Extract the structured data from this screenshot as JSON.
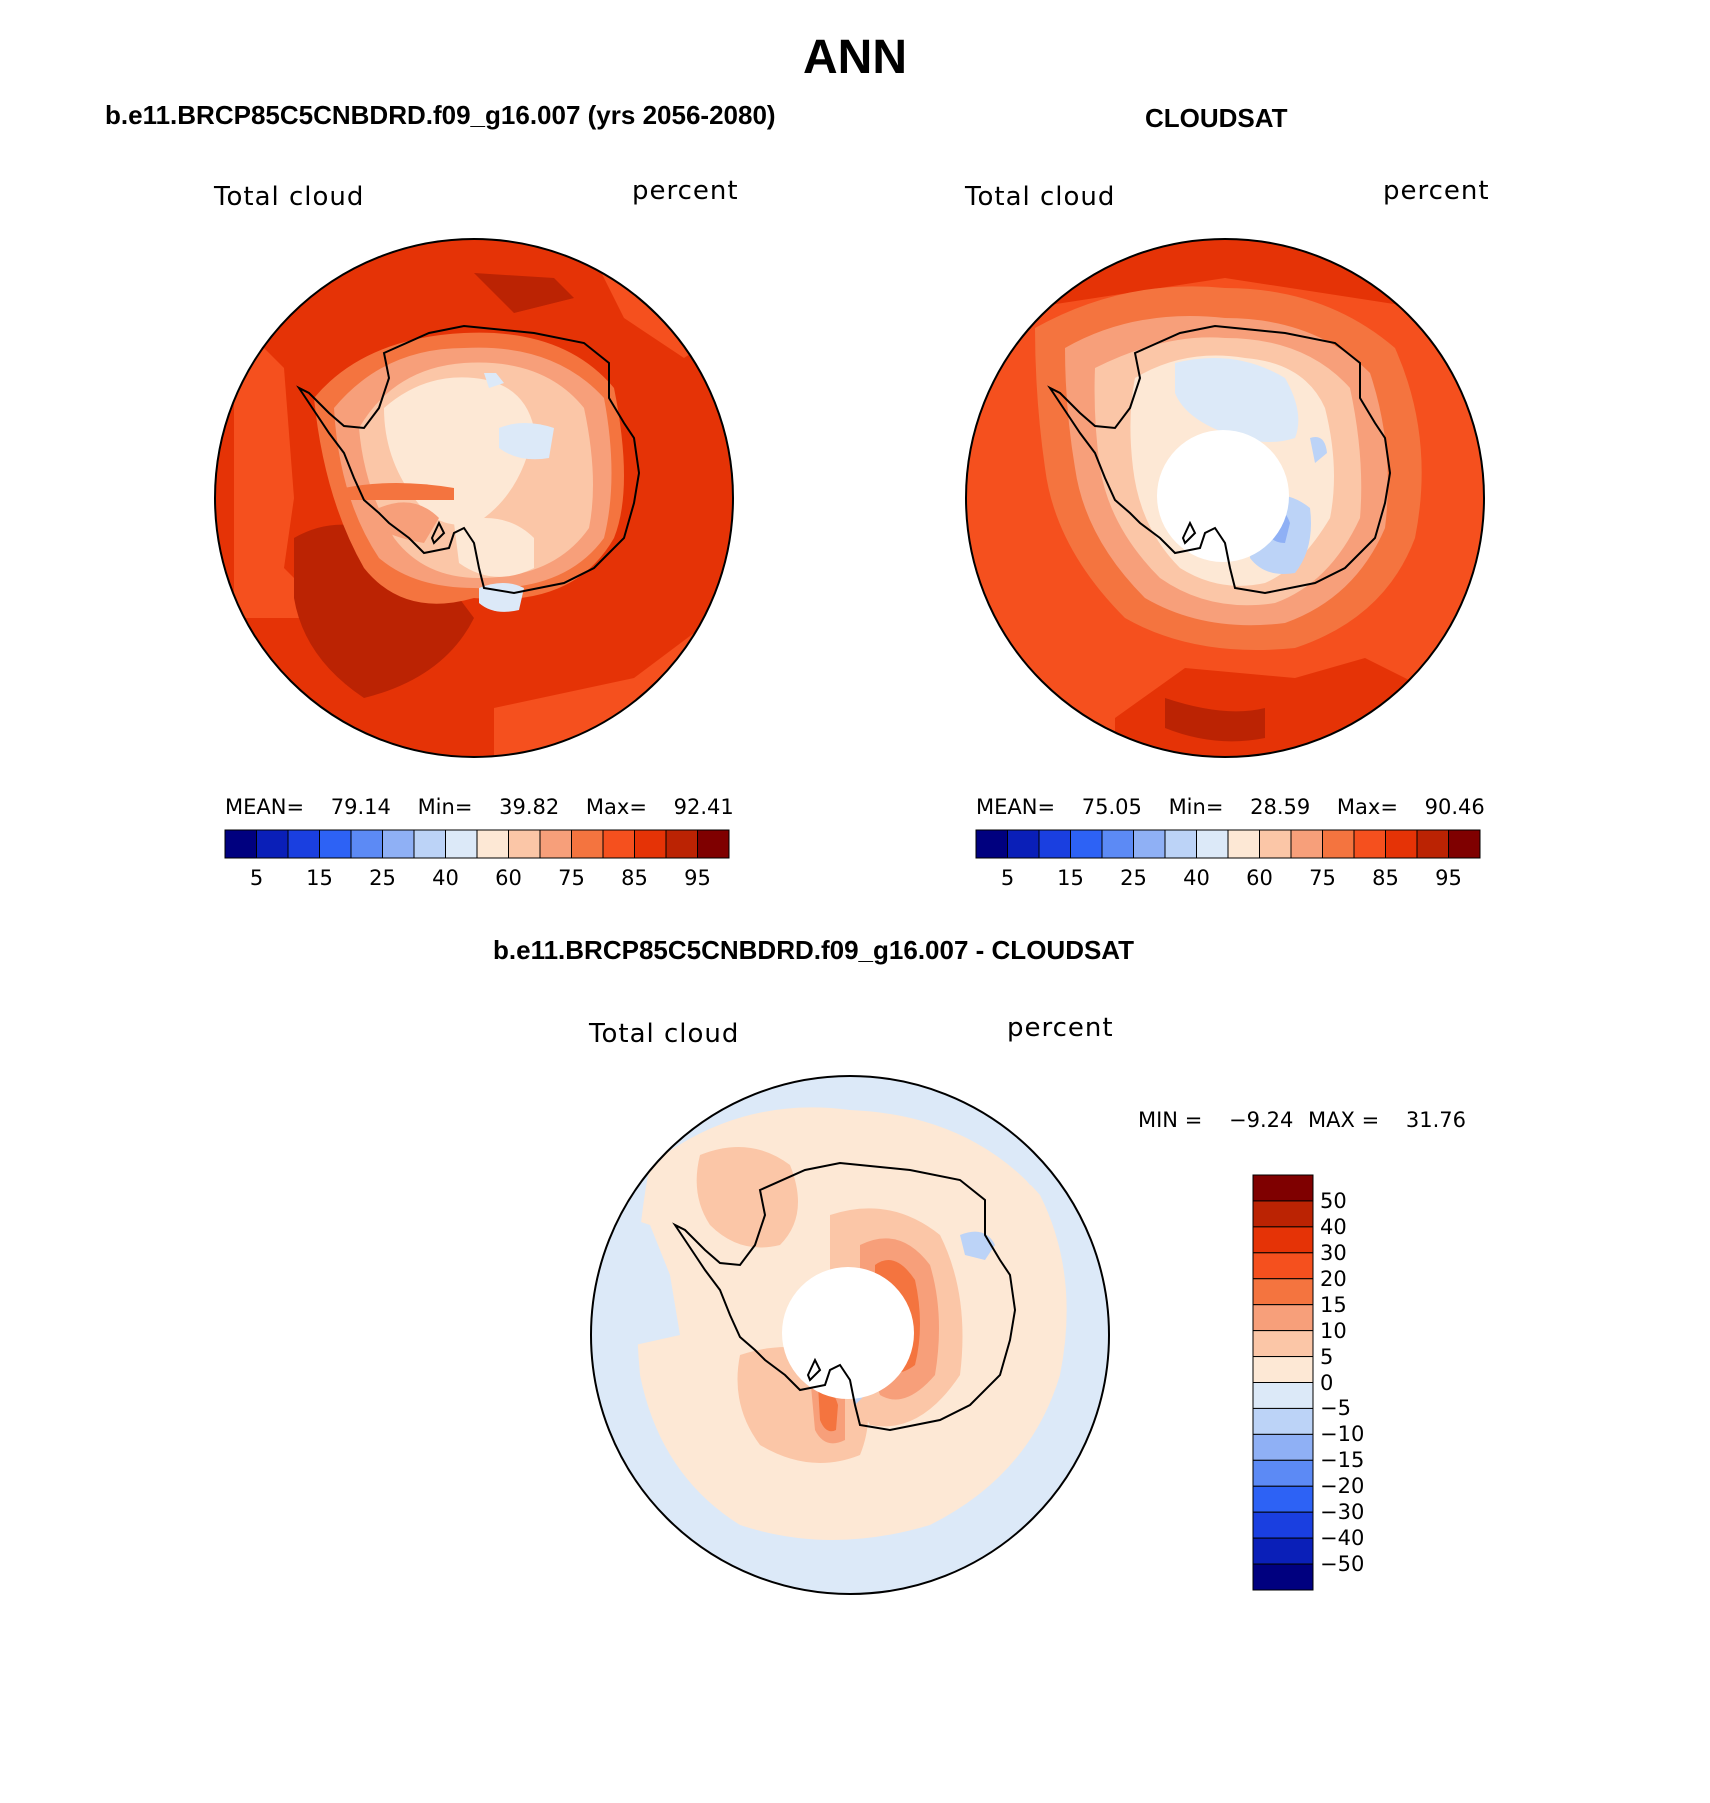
{
  "title": "ANN",
  "panels": [
    {
      "id": "model",
      "title": "b.e11.BRCP85C5CNBDRD.f09_g16.007 (yrs 2056-2080)",
      "left_label": "Total cloud",
      "right_label": "percent",
      "stats": {
        "mean_label": "MEAN=",
        "mean": "79.14",
        "min_label": "Min=",
        "min": "39.82",
        "max_label": "Max=",
        "max": "92.41"
      },
      "colorbar_ticks": [
        "5",
        "15",
        "25",
        "40",
        "60",
        "75",
        "85",
        "95"
      ],
      "has_pole_hole": false
    },
    {
      "id": "obs",
      "title": "CLOUDSAT",
      "left_label": "Total cloud",
      "right_label": "percent",
      "stats": {
        "mean_label": "MEAN=",
        "mean": "75.05",
        "min_label": "Min=",
        "min": "28.59",
        "max_label": "Max=",
        "max": "90.46"
      },
      "colorbar_ticks": [
        "5",
        "15",
        "25",
        "40",
        "60",
        "75",
        "85",
        "95"
      ],
      "has_pole_hole": true
    },
    {
      "id": "diff",
      "title": "b.e11.BRCP85C5CNBDRD.f09_g16.007 - CLOUDSAT",
      "left_label": "Total cloud",
      "right_label": "percent",
      "stats": {
        "min_label": "MIN =",
        "min": "−9.24",
        "max_label": "MAX =",
        "max": "31.76"
      },
      "colorbar_ticks": [
        "50",
        "40",
        "30",
        "20",
        "15",
        "10",
        "5",
        "0",
        "−5",
        "−10",
        "−15",
        "−20",
        "−30",
        "−40",
        "−50"
      ],
      "has_pole_hole": true
    }
  ],
  "colors": {
    "abs_scale": [
      "#00007f",
      "#0a1fb8",
      "#1a3fe0",
      "#2d62f5",
      "#5c8af5",
      "#8fb0f5",
      "#bcd3f7",
      "#dce9f8",
      "#fde8d5",
      "#fbc6a7",
      "#f79f7a",
      "#f4743f",
      "#f5501e",
      "#e53306",
      "#bb2303",
      "#7f0000"
    ],
    "diff_scale": [
      "#7f0000",
      "#bb2303",
      "#e53306",
      "#f5501e",
      "#f4743f",
      "#f79f7a",
      "#fbc6a7",
      "#fde8d5",
      "#dce9f8",
      "#bcd3f7",
      "#8fb0f5",
      "#5c8af5",
      "#2d62f5",
      "#1a3fe0",
      "#0a1fb8",
      "#00007f"
    ]
  }
}
